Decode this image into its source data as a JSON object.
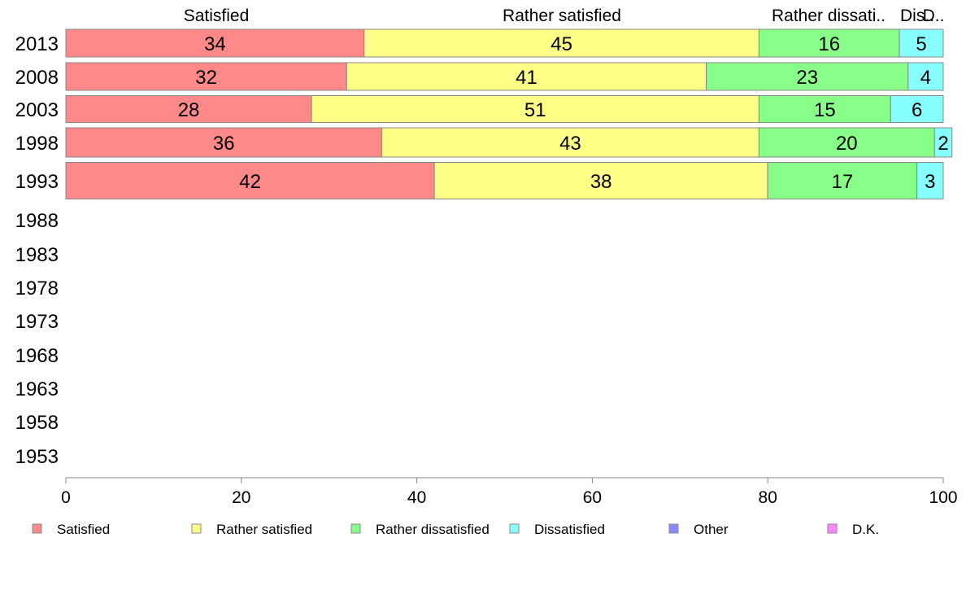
{
  "chart_data": {
    "type": "bar",
    "orientation": "horizontal",
    "stacked": true,
    "categories": [
      "2013",
      "2008",
      "2003",
      "1998",
      "1993",
      "1988",
      "1983",
      "1978",
      "1973",
      "1968",
      "1963",
      "1958",
      "1953"
    ],
    "category_labels": [
      "2013",
      "2008",
      "2003",
      "1998",
      "1993",
      "1988",
      "1983",
      "1978",
      "1973",
      "1968",
      "1963",
      "1958",
      "1953"
    ],
    "series": [
      {
        "name": "Satisfied",
        "color": "#ff8888",
        "values": [
          34,
          32,
          28,
          36,
          42,
          null,
          null,
          null,
          null,
          null,
          null,
          null,
          null
        ]
      },
      {
        "name": "Rather satisfied",
        "color": "#ffff88",
        "values": [
          45,
          41,
          51,
          43,
          38,
          null,
          null,
          null,
          null,
          null,
          null,
          null,
          null
        ]
      },
      {
        "name": "Rather dissatisfied",
        "color": "#88ff88",
        "values": [
          16,
          23,
          15,
          20,
          17,
          null,
          null,
          null,
          null,
          null,
          null,
          null,
          null
        ]
      },
      {
        "name": "Dissatisfied",
        "color": "#88ffff",
        "values": [
          5,
          4,
          6,
          2,
          3,
          null,
          null,
          null,
          null,
          null,
          null,
          null,
          null
        ]
      },
      {
        "name": "Other",
        "color": "#8888ff",
        "values": [
          0,
          0,
          0,
          0,
          0,
          null,
          null,
          null,
          null,
          null,
          null,
          null,
          null
        ]
      },
      {
        "name": "D.K.",
        "color": "#ff88ff",
        "values": [
          0,
          0,
          0,
          0,
          0,
          null,
          null,
          null,
          null,
          null,
          null,
          null,
          null
        ]
      }
    ],
    "top_labels": [
      "Satisfied",
      "Rather satisfied",
      "Rather dissati..",
      "Dis..",
      "D.."
    ],
    "x_ticks": [
      0,
      20,
      40,
      60,
      80,
      100
    ],
    "x_tick_labels": [
      "0",
      "20",
      "40",
      "60",
      "80",
      "100"
    ],
    "xlim": [
      0,
      100
    ],
    "legend_labels": [
      "Satisfied",
      "Rather satisfied",
      "Rather dissatisfied",
      "Dissatisfied",
      "Other",
      "D.K."
    ],
    "legend_position": "bottom",
    "grid": false
  }
}
